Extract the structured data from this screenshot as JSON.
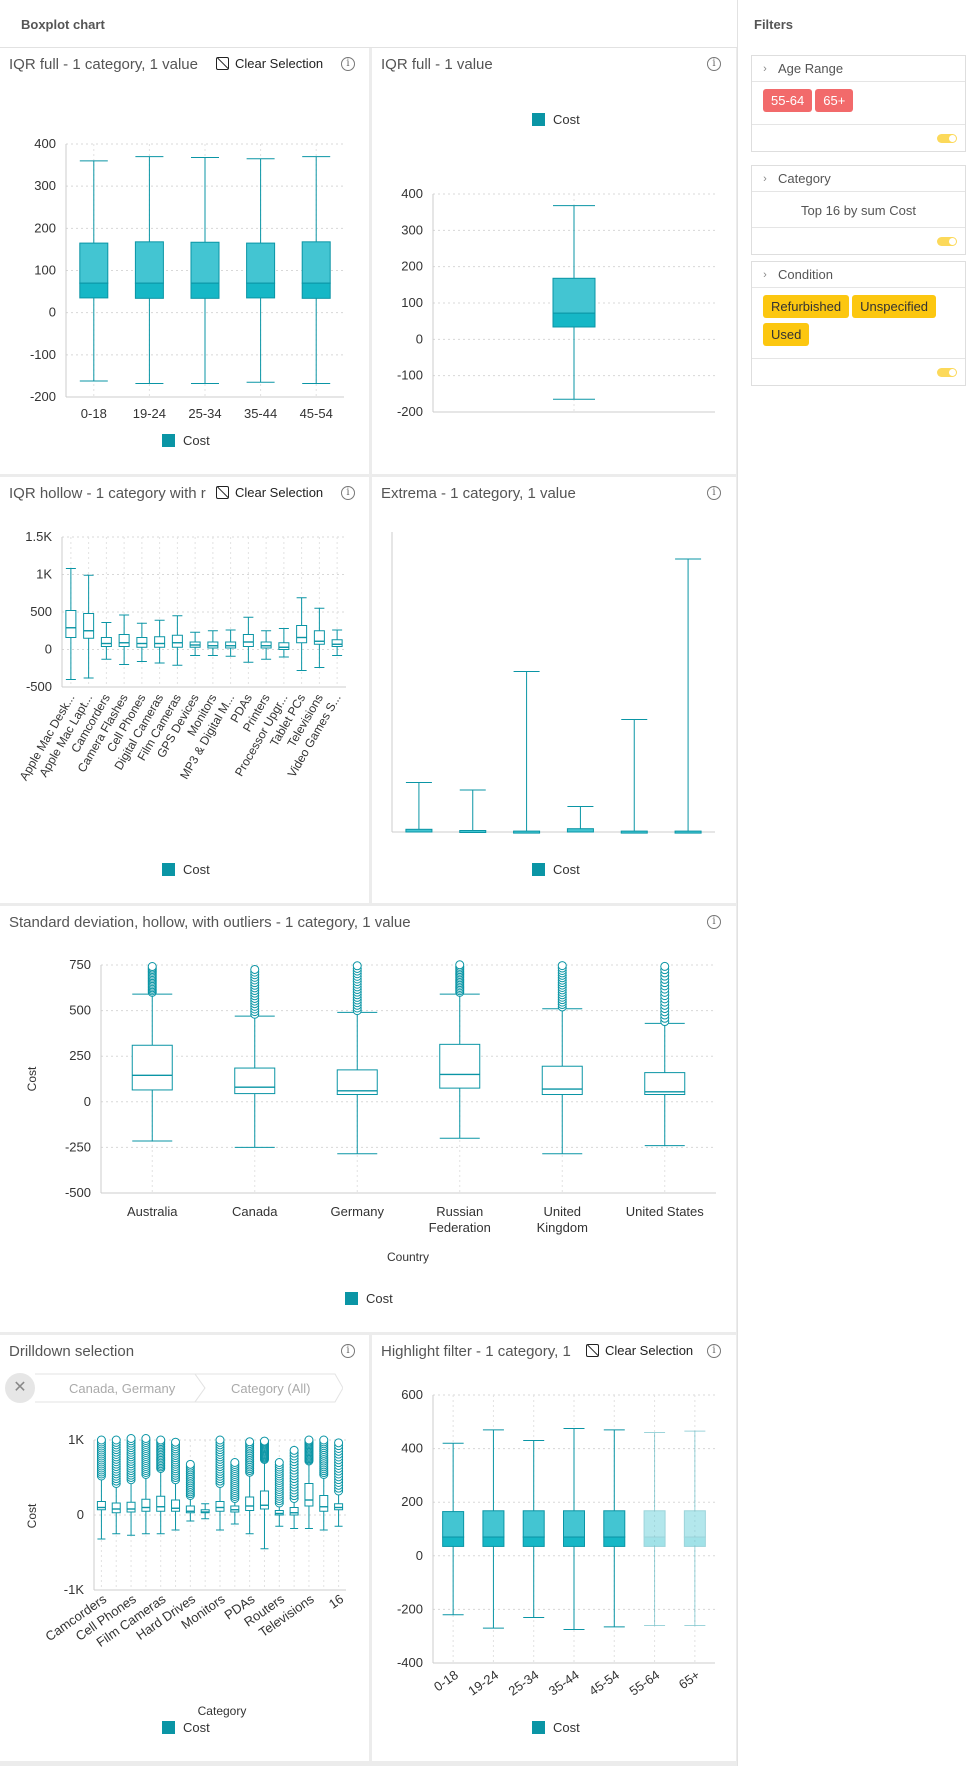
{
  "app": {
    "title": "Boxplot chart"
  },
  "legend_label": "Cost",
  "clear_selection_label": "Clear Selection",
  "info_glyph": "i",
  "panels": {
    "p1": {
      "title": "IQR full - 1 category, 1 value"
    },
    "p2": {
      "title": "IQR full - 1 value"
    },
    "p3": {
      "title": "IQR hollow - 1 category with r"
    },
    "p4": {
      "title": "Extrema - 1 category, 1 value"
    },
    "p5": {
      "title": "Standard deviation, hollow, with outliers - 1 category, 1 value"
    },
    "p6": {
      "title": "Drilldown selection"
    },
    "p7": {
      "title": "Highlight filter - 1 category, 1"
    }
  },
  "drilldown": {
    "crumbs": [
      "Canada, Germany",
      "Category (All)"
    ],
    "close_icon": "close-icon"
  },
  "filters": {
    "title": "Filters",
    "age_range": {
      "label": "Age Range",
      "chips": [
        "55-64",
        "65+"
      ]
    },
    "category": {
      "label": "Category",
      "text": "Top 16 by sum Cost"
    },
    "condition": {
      "label": "Condition",
      "chips": [
        "Refurbished",
        "Unspecified",
        "Used"
      ]
    }
  },
  "colors": {
    "fill": "#43c5d2",
    "stroke": "#0a95a5",
    "median_band": "#16b7c6",
    "chip_red": "#f26a6b",
    "chip_yellow": "#fcc710"
  },
  "chart_data": [
    {
      "id": "p1",
      "type": "boxplot",
      "fill": "full",
      "categories": [
        "0-18",
        "19-24",
        "25-34",
        "35-44",
        "45-54"
      ],
      "ylim": [
        -200,
        400
      ],
      "yticks": [
        400,
        300,
        200,
        100,
        0,
        -100,
        -200
      ],
      "series": [
        {
          "name": "Cost",
          "boxes": [
            {
              "min": -162,
              "q1": 35,
              "median": 70,
              "q3": 165,
              "max": 360
            },
            {
              "min": -168,
              "q1": 34,
              "median": 70,
              "q3": 168,
              "max": 370
            },
            {
              "min": -168,
              "q1": 34,
              "median": 70,
              "q3": 167,
              "max": 368
            },
            {
              "min": -165,
              "q1": 35,
              "median": 70,
              "q3": 165,
              "max": 365
            },
            {
              "min": -168,
              "q1": 34,
              "median": 70,
              "q3": 168,
              "max": 370
            }
          ]
        }
      ],
      "legend": "bottom",
      "grid": true
    },
    {
      "id": "p2",
      "type": "boxplot",
      "fill": "full",
      "categories": [
        ""
      ],
      "ylim": [
        -200,
        400
      ],
      "yticks": [
        400,
        300,
        200,
        100,
        0,
        -100,
        -200
      ],
      "series": [
        {
          "name": "Cost",
          "boxes": [
            {
              "min": -165,
              "q1": 34,
              "median": 72,
              "q3": 168,
              "max": 368
            }
          ]
        }
      ],
      "legend": "top"
    },
    {
      "id": "p3",
      "type": "boxplot",
      "fill": "hollow",
      "categories": [
        "Apple Mac Desk...",
        "Apple Mac Lapt...",
        "Camcorders",
        "Camera Flashes",
        "Cell Phones",
        "Digital Cameras",
        "Film Cameras",
        "GPS Devices",
        "Monitors",
        "MP3 & Digital M...",
        "PDAs",
        "Printers",
        "Processor Upgr...",
        "Tablet PCs",
        "Televisions",
        "Video Games S..."
      ],
      "ylim": [
        -500,
        1500
      ],
      "yticks": [
        1500,
        1000,
        500,
        0,
        -500
      ],
      "ytick_labels": [
        "1.5K",
        "1K",
        "500",
        "0",
        "-500"
      ],
      "series": [
        {
          "name": "Cost",
          "boxes": [
            {
              "min": -400,
              "q1": 160,
              "median": 290,
              "q3": 520,
              "max": 1080
            },
            {
              "min": -380,
              "q1": 150,
              "median": 250,
              "q3": 480,
              "max": 990
            },
            {
              "min": -130,
              "q1": 40,
              "median": 80,
              "q3": 160,
              "max": 360
            },
            {
              "min": -200,
              "q1": 40,
              "median": 90,
              "q3": 200,
              "max": 460
            },
            {
              "min": -160,
              "q1": 30,
              "median": 80,
              "q3": 160,
              "max": 350
            },
            {
              "min": -180,
              "q1": 30,
              "median": 80,
              "q3": 170,
              "max": 390
            },
            {
              "min": -210,
              "q1": 30,
              "median": 90,
              "q3": 190,
              "max": 450
            },
            {
              "min": -80,
              "q1": 30,
              "median": 60,
              "q3": 100,
              "max": 230
            },
            {
              "min": -80,
              "q1": 20,
              "median": 50,
              "q3": 100,
              "max": 250
            },
            {
              "min": -90,
              "q1": 20,
              "median": 50,
              "q3": 100,
              "max": 260
            },
            {
              "min": -170,
              "q1": 40,
              "median": 100,
              "q3": 200,
              "max": 430
            },
            {
              "min": -130,
              "q1": 20,
              "median": 50,
              "q3": 100,
              "max": 250
            },
            {
              "min": -100,
              "q1": 0,
              "median": 30,
              "q3": 90,
              "max": 280
            },
            {
              "min": -280,
              "q1": 90,
              "median": 160,
              "q3": 320,
              "max": 690
            },
            {
              "min": -240,
              "q1": 70,
              "median": 110,
              "q3": 250,
              "max": 550
            },
            {
              "min": -80,
              "q1": 40,
              "median": 70,
              "q3": 130,
              "max": 260
            }
          ]
        }
      ],
      "legend": "bottom"
    },
    {
      "id": "p4",
      "type": "boxplot",
      "fill": "extrema",
      "categories": [
        "",
        "",
        "",
        "",
        "",
        ""
      ],
      "series": [
        {
          "name": "Cost",
          "boxes": [
            {
              "min": 0,
              "max": 1650,
              "low": 0,
              "high": 90
            },
            {
              "min": 0,
              "max": 1400,
              "low": 0,
              "high": 50
            },
            {
              "min": 0,
              "max": 5350,
              "low": 0,
              "high": 30
            },
            {
              "min": 0,
              "max": 850,
              "low": 0,
              "high": 110
            },
            {
              "min": 0,
              "max": 3750,
              "low": 0,
              "high": 30
            },
            {
              "min": 0,
              "max": 9100,
              "low": 0,
              "high": 30
            }
          ]
        }
      ],
      "ylim": [
        0,
        10000
      ],
      "legend": "bottom"
    },
    {
      "id": "p5",
      "type": "boxplot",
      "fill": "hollow",
      "categories": [
        "Australia",
        "Canada",
        "Germany",
        "Russian Federation",
        "United Kingdom",
        "United States"
      ],
      "category_lines": [
        [
          "Australia"
        ],
        [
          "Canada"
        ],
        [
          "Germany"
        ],
        [
          "Russian",
          "Federation"
        ],
        [
          "United",
          "Kingdom"
        ],
        [
          "United States"
        ]
      ],
      "xlabel": "Country",
      "ylabel": "Cost",
      "ylim": [
        -500,
        750
      ],
      "yticks": [
        750,
        500,
        250,
        0,
        -250,
        -500
      ],
      "series": [
        {
          "name": "Cost",
          "boxes": [
            {
              "min": -215,
              "q1": 65,
              "median": 145,
              "q3": 310,
              "max": 590,
              "outliers_from": 600,
              "outliers_to": 750
            },
            {
              "min": -250,
              "q1": 45,
              "median": 80,
              "q3": 185,
              "max": 470,
              "outliers_from": 480,
              "outliers_to": 740
            },
            {
              "min": -285,
              "q1": 40,
              "median": 60,
              "q3": 175,
              "max": 490,
              "outliers_from": 500,
              "outliers_to": 760
            },
            {
              "min": -200,
              "q1": 75,
              "median": 150,
              "q3": 315,
              "max": 590,
              "outliers_from": 600,
              "outliers_to": 760
            },
            {
              "min": -285,
              "q1": 40,
              "median": 70,
              "q3": 195,
              "max": 510,
              "outliers_from": 520,
              "outliers_to": 760
            },
            {
              "min": -240,
              "q1": 40,
              "median": 55,
              "q3": 160,
              "max": 430,
              "outliers_from": 440,
              "outliers_to": 760
            }
          ]
        }
      ],
      "legend": "bottom"
    },
    {
      "id": "p6",
      "type": "boxplot",
      "fill": "hollow",
      "categories": [
        "Camcorders",
        "",
        "Cell Phones",
        "",
        "Film Cameras",
        "",
        "Hard Drives",
        "",
        "Monitors",
        "",
        "PDAs",
        "",
        "Routers",
        "",
        "Televisions",
        "",
        "16"
      ],
      "xlabel": "Category",
      "ylabel": "Cost",
      "ylim": [
        -1000,
        1000
      ],
      "yticks": [
        1000,
        0,
        -1000
      ],
      "ytick_labels": [
        "1K",
        "0",
        "-1K"
      ],
      "series": [
        {
          "name": "Cost",
          "boxes": [
            {
              "min": -320,
              "q1": 70,
              "median": 100,
              "q3": 180,
              "max": 500,
              "outliers_from": 520,
              "outliers_to": 1000
            },
            {
              "min": -250,
              "q1": 30,
              "median": 80,
              "q3": 160,
              "max": 400,
              "outliers_from": 420,
              "outliers_to": 1000
            },
            {
              "min": -270,
              "q1": 40,
              "median": 80,
              "q3": 170,
              "max": 450,
              "outliers_from": 470,
              "outliers_to": 1020
            },
            {
              "min": -250,
              "q1": 50,
              "median": 100,
              "q3": 210,
              "max": 520,
              "outliers_from": 540,
              "outliers_to": 1020
            },
            {
              "min": -250,
              "q1": 50,
              "median": 110,
              "q3": 250,
              "max": 600,
              "outliers_from": 620,
              "outliers_to": 1000
            },
            {
              "min": -200,
              "q1": 50,
              "median": 90,
              "q3": 200,
              "max": 450,
              "outliers_from": 470,
              "outliers_to": 1000
            },
            {
              "min": -80,
              "q1": 30,
              "median": 50,
              "q3": 120,
              "max": 250,
              "outliers_from": 260,
              "outliers_to": 700
            },
            {
              "min": -50,
              "q1": 30,
              "median": 40,
              "q3": 70,
              "max": 150,
              "outliers_from": 0,
              "outliers_to": 0
            },
            {
              "min": -200,
              "q1": 50,
              "median": 100,
              "q3": 180,
              "max": 400,
              "outliers_from": 420,
              "outliers_to": 1000
            },
            {
              "min": -120,
              "q1": 40,
              "median": 70,
              "q3": 120,
              "max": 200,
              "outliers_from": 220,
              "outliers_to": 700
            },
            {
              "min": -250,
              "q1": 60,
              "median": 120,
              "q3": 240,
              "max": 550,
              "outliers_from": 570,
              "outliers_to": 1000
            },
            {
              "min": -450,
              "q1": 80,
              "median": 130,
              "q3": 320,
              "max": 720,
              "outliers_from": 740,
              "outliers_to": 1000
            },
            {
              "min": -150,
              "q1": 0,
              "median": 20,
              "q3": 60,
              "max": 140,
              "outliers_from": 160,
              "outliers_to": 700
            },
            {
              "min": -180,
              "q1": 0,
              "median": 30,
              "q3": 100,
              "max": 200,
              "outliers_from": 220,
              "outliers_to": 900
            },
            {
              "min": -180,
              "q1": 120,
              "median": 200,
              "q3": 420,
              "max": 700,
              "outliers_from": 720,
              "outliers_to": 1000
            },
            {
              "min": -200,
              "q1": 50,
              "median": 110,
              "q3": 260,
              "max": 520,
              "outliers_from": 540,
              "outliers_to": 1000
            },
            {
              "min": -150,
              "q1": 70,
              "median": 100,
              "q3": 150,
              "max": 300,
              "outliers_from": 320,
              "outliers_to": 1000
            }
          ]
        }
      ],
      "legend": "bottom"
    },
    {
      "id": "p7",
      "type": "boxplot",
      "fill": "full",
      "categories": [
        "0-18",
        "19-24",
        "25-34",
        "35-44",
        "45-54",
        "55-64",
        "65+"
      ],
      "ylim": [
        -400,
        600
      ],
      "yticks": [
        600,
        400,
        200,
        0,
        -200,
        -400
      ],
      "highlighted": [
        "55-64",
        "65+"
      ],
      "series": [
        {
          "name": "Cost",
          "boxes": [
            {
              "min": -220,
              "q1": 35,
              "median": 70,
              "q3": 165,
              "max": 420
            },
            {
              "min": -270,
              "q1": 35,
              "median": 70,
              "q3": 168,
              "max": 470
            },
            {
              "min": -230,
              "q1": 35,
              "median": 70,
              "q3": 168,
              "max": 430
            },
            {
              "min": -275,
              "q1": 35,
              "median": 70,
              "q3": 168,
              "max": 475
            },
            {
              "min": -265,
              "q1": 35,
              "median": 70,
              "q3": 168,
              "max": 470
            },
            {
              "min": -260,
              "q1": 35,
              "median": 70,
              "q3": 168,
              "max": 460
            },
            {
              "min": -260,
              "q1": 35,
              "median": 70,
              "q3": 168,
              "max": 465
            }
          ]
        }
      ],
      "legend": "bottom"
    }
  ]
}
